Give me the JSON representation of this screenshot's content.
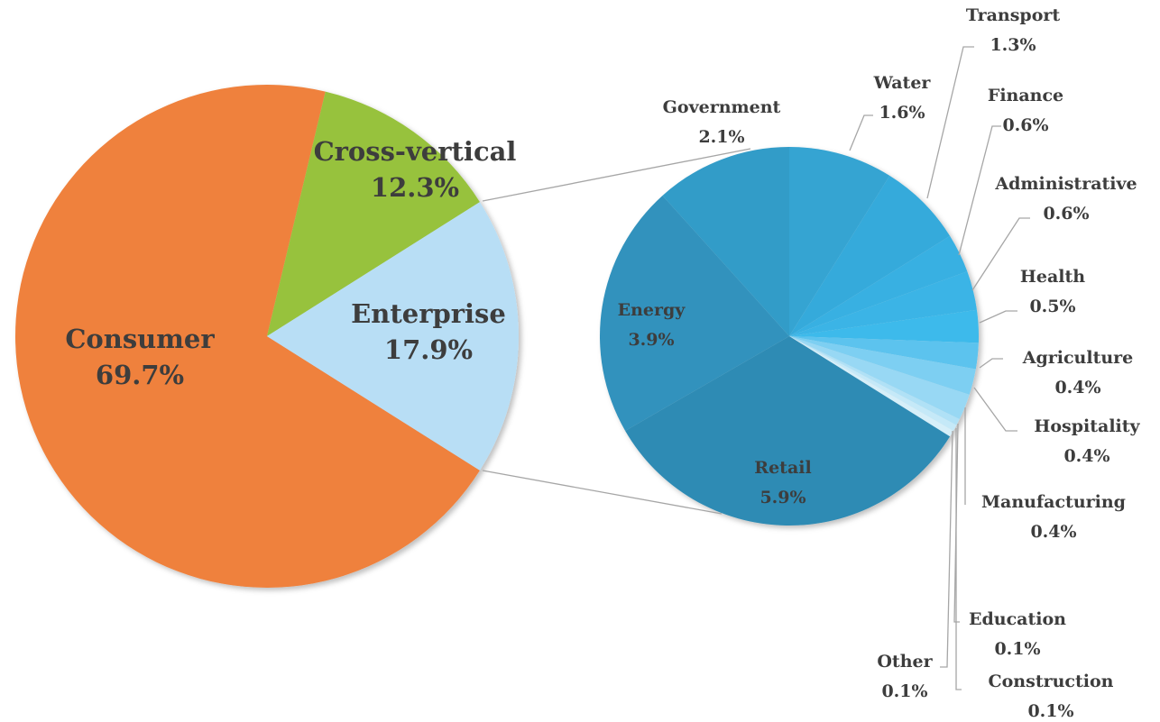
{
  "chart_data": [
    {
      "type": "pie",
      "categories": [
        "Consumer",
        "Cross-vertical",
        "Enterprise"
      ],
      "values": [
        69.7,
        12.3,
        17.9
      ],
      "value_labels": [
        "69.7%",
        "12.3%",
        "17.9%"
      ],
      "colors": [
        "#ef813c",
        "#97c23d",
        "#b8def5"
      ]
    },
    {
      "type": "pie",
      "categories": [
        "Water",
        "Transport",
        "Finance",
        "Administrative",
        "Health",
        "Agriculture",
        "Hospitality",
        "Manufacturing",
        "Education",
        "Construction",
        "Other",
        "Retail",
        "Energy",
        "Government"
      ],
      "values": [
        1.6,
        1.3,
        0.6,
        0.6,
        0.5,
        0.4,
        0.4,
        0.4,
        0.1,
        0.1,
        0.1,
        5.9,
        3.9,
        2.1
      ],
      "value_labels": [
        "1.6%",
        "1.3%",
        "0.6%",
        "0.6%",
        "0.5%",
        "0.4%",
        "0.4%",
        "0.4%",
        "0.1%",
        "0.1%",
        "0.1%",
        "5.9%",
        "3.9%",
        "2.1%"
      ],
      "colors": [
        "#34a4d2",
        "#36aadb",
        "#38b0e2",
        "#3ab4e6",
        "#3dbaeb",
        "#5cc3ee",
        "#7dcff2",
        "#98d8f4",
        "#b0e1f6",
        "#c5e9f8",
        "#d6eff9",
        "#2e8bb4",
        "#3192bd",
        "#339cc8"
      ]
    }
  ]
}
